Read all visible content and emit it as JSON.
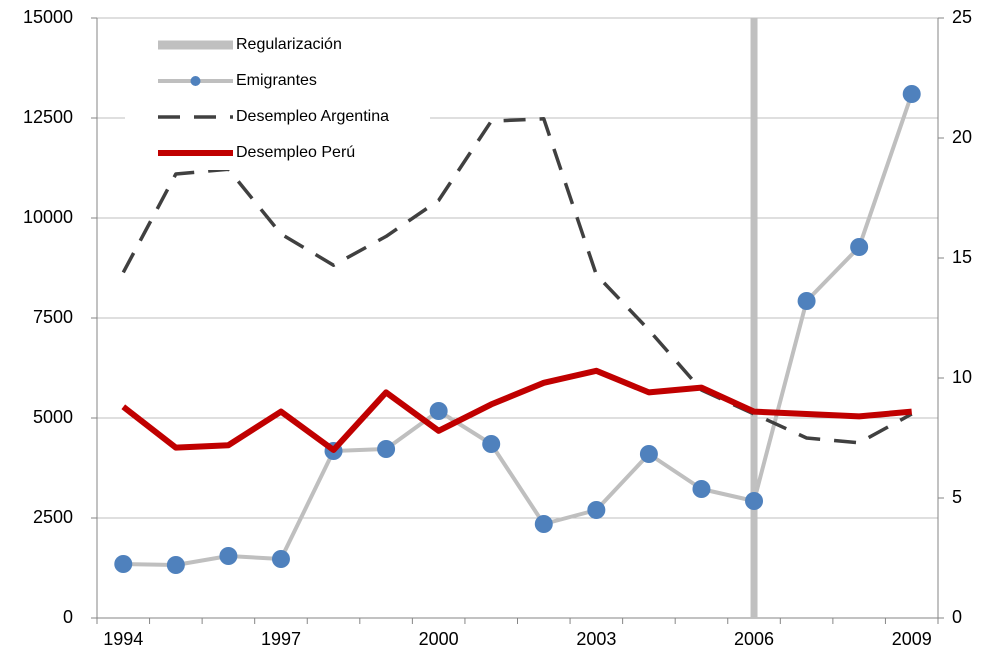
{
  "chart_data": {
    "type": "line",
    "categories": [
      "1994",
      null,
      null,
      "1997",
      null,
      null,
      "2000",
      null,
      null,
      "2003",
      null,
      null,
      "2006",
      null,
      null,
      "2009"
    ],
    "series": [
      {
        "name": "Emigrantes",
        "color": "#bfbfbf",
        "marker_color": "#4f81bd",
        "style": "solid-markers",
        "axis": "y",
        "values": [
          1350,
          1325,
          1550,
          1475,
          4175,
          4225,
          5175,
          4350,
          2350,
          2700,
          4100,
          3225,
          2925,
          7925,
          9275,
          13100
        ]
      },
      {
        "name": "Desempleo Argentina",
        "color": "#404040",
        "style": "dashed",
        "axis": "y2",
        "values": [
          14.4,
          18.5,
          18.7,
          16.0,
          14.7,
          15.9,
          17.4,
          20.7,
          20.8,
          14.3,
          12.0,
          9.5,
          8.5,
          7.5,
          7.3,
          8.5
        ]
      },
      {
        "name": "Desempleo Perú",
        "color": "#c00000",
        "style": "solid",
        "axis": "y2",
        "values": [
          8.8,
          7.1,
          7.2,
          8.6,
          7.0,
          9.4,
          7.8,
          8.9,
          9.8,
          10.3,
          9.4,
          9.6,
          8.6,
          8.5,
          8.4,
          8.6
        ]
      }
    ],
    "marker": {
      "name": "Regularización",
      "category": "2006",
      "color": "#c0c0c0"
    },
    "ylim": [
      0,
      15000
    ],
    "yticks": [
      0,
      2500,
      5000,
      7500,
      10000,
      12500,
      15000
    ],
    "y2lim": [
      0,
      25
    ],
    "y2ticks": [
      0,
      5,
      10,
      15,
      20,
      25
    ],
    "grid": true,
    "legend": "upper left"
  }
}
